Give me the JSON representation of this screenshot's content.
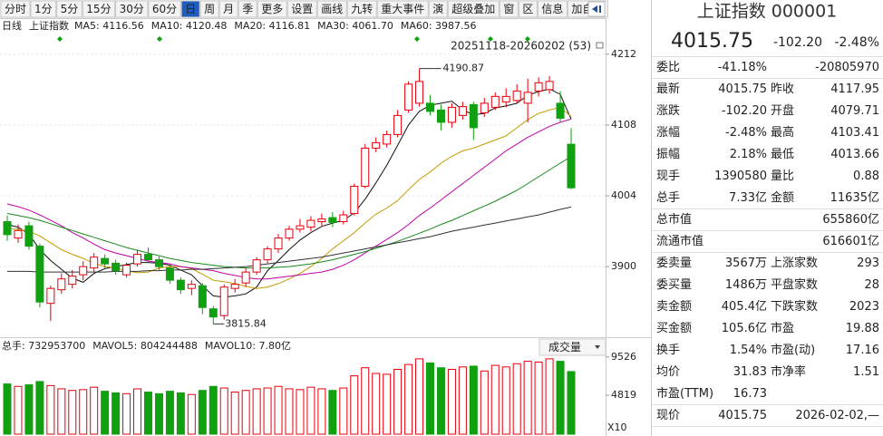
{
  "toolbar": {
    "items": [
      "分时",
      "1分",
      "5分",
      "15分",
      "30分",
      "60分",
      "日",
      "周",
      "月",
      "季",
      "更多",
      "设置",
      "画线",
      "九转",
      "重大事件",
      "演",
      "超级叠加",
      "窗",
      "区",
      "信息",
      "加自选"
    ],
    "active": 6
  },
  "chart_data": {
    "type": "candlestick",
    "period": "日线",
    "name": "上证指数",
    "range_label": "20251118-20260202 (53)",
    "up_color": "#e8000b",
    "down_color": "#10a010",
    "grid": true,
    "ylim": [
      3799,
      4245
    ],
    "yticks": [
      3900,
      4004,
      4108,
      4212
    ],
    "ytick_color": "#b00000",
    "open": [
      3966,
      3942,
      3960,
      3930,
      3846,
      3866,
      3874,
      3888,
      3898,
      3912,
      3905,
      3888,
      3904,
      3918,
      3910,
      3898,
      3880,
      3868,
      3872,
      3838,
      3828,
      3868,
      3876,
      3892,
      3910,
      3926,
      3942,
      3955,
      3958,
      3966,
      3972,
      3966,
      3978,
      4018,
      4074,
      4080,
      4094,
      4130,
      4140,
      4140,
      4130,
      4112,
      4122,
      4138,
      4126,
      4134,
      4142,
      4144,
      4140,
      4158,
      4160,
      4140,
      4079.71
    ],
    "high": [
      3975,
      3962,
      3966,
      3934,
      3872,
      3890,
      3895,
      3908,
      3920,
      3918,
      3910,
      3906,
      3925,
      3928,
      3915,
      3902,
      3884,
      3880,
      3876,
      3842,
      3874,
      3882,
      3898,
      3914,
      3930,
      3948,
      3960,
      3970,
      3974,
      3978,
      3980,
      3982,
      4022,
      4080,
      4090,
      4100,
      4130,
      4172,
      4190.87,
      4152,
      4138,
      4140,
      4142,
      4142,
      4148,
      4156,
      4162,
      4168,
      4176,
      4178,
      4180,
      4158,
      4103.41
    ],
    "low": [
      3938,
      3935,
      3925,
      3840,
      3820,
      3860,
      3868,
      3880,
      3892,
      3898,
      3888,
      3884,
      3900,
      3905,
      3895,
      3875,
      3860,
      3858,
      3830,
      3815.84,
      3822,
      3862,
      3870,
      3888,
      3905,
      3920,
      3938,
      3950,
      3952,
      3960,
      3958,
      3962,
      3975,
      4015,
      4068,
      4075,
      4090,
      4126,
      4135,
      4122,
      4100,
      4104,
      4116,
      4086,
      4120,
      4130,
      4134,
      4140,
      4112,
      4150,
      4154,
      4112,
      4013.66
    ],
    "close": [
      3947,
      3953,
      3930,
      3848,
      3868,
      3882,
      3886,
      3900,
      3914,
      3904,
      3894,
      3902,
      3918,
      3910,
      3900,
      3880,
      3866,
      3874,
      3840,
      3826,
      3870,
      3874,
      3892,
      3910,
      3926,
      3942,
      3955,
      3960,
      3968,
      3970,
      3965,
      3976,
      4018,
      4074,
      4082,
      4094,
      4122,
      4168,
      4172,
      4128,
      4112,
      4134,
      4135,
      4104,
      4140,
      4150,
      4150,
      4158,
      4156,
      4170,
      4172,
      4117.95,
      4015.75
    ],
    "ma": [
      {
        "label": "MA5: 4116.56",
        "color": "#111111",
        "values": [
          3962,
          3958,
          3948,
          3925,
          3909,
          3896,
          3883,
          3877,
          3890,
          3897,
          3900,
          3903,
          3906,
          3906,
          3905,
          3902,
          3895,
          3888,
          3872,
          3857,
          3855,
          3857,
          3860,
          3870,
          3894,
          3909,
          3925,
          3939,
          3950,
          3959,
          3964,
          3968,
          3979,
          3999,
          4023,
          4049,
          4078,
          4108,
          4128,
          4137,
          4140,
          4143,
          4130,
          4123,
          4125,
          4133,
          4136,
          4140,
          4152,
          4157,
          4161,
          4153,
          4116.56
        ]
      },
      {
        "label": "MA10: 4120.48",
        "color": "#c49a00",
        "values": [
          3955,
          3955,
          3952,
          3945,
          3935,
          3925,
          3918,
          3912,
          3905,
          3900,
          3898,
          3894,
          3891,
          3892,
          3898,
          3900,
          3900,
          3897,
          3889,
          3880,
          3878,
          3875,
          3871,
          3868,
          3870,
          3875,
          3882,
          3890,
          3900,
          3912,
          3926,
          3938,
          3950,
          3964,
          3977,
          3986,
          3997,
          4013,
          4028,
          4039,
          4052,
          4062,
          4070,
          4074,
          4080,
          4086,
          4092,
          4104,
          4116,
          4125,
          4130,
          4134,
          4120.48
        ]
      },
      {
        "label": "MA20: 4116.81",
        "color": "#c000a8",
        "values": [
          3992,
          3988,
          3983,
          3976,
          3968,
          3960,
          3950,
          3942,
          3933,
          3925,
          3920,
          3916,
          3912,
          3908,
          3906,
          3904,
          3900,
          3898,
          3896,
          3894,
          3890,
          3887,
          3884,
          3882,
          3882,
          3884,
          3886,
          3888,
          3890,
          3892,
          3896,
          3902,
          3910,
          3920,
          3930,
          3940,
          3950,
          3962,
          3975,
          3986,
          3998,
          4010,
          4022,
          4034,
          4046,
          4058,
          4070,
          4080,
          4090,
          4098,
          4106,
          4112,
          4116.81
        ]
      },
      {
        "label": "MA30: 4061.70",
        "color": "#1a8a1a",
        "values": [
          3978,
          3975,
          3972,
          3968,
          3963,
          3958,
          3953,
          3948,
          3943,
          3938,
          3933,
          3928,
          3924,
          3920,
          3916,
          3912,
          3909,
          3906,
          3904,
          3902,
          3900,
          3899,
          3898,
          3898,
          3898,
          3899,
          3900,
          3902,
          3904,
          3907,
          3910,
          3914,
          3918,
          3922,
          3927,
          3932,
          3937,
          3943,
          3949,
          3955,
          3962,
          3968,
          3975,
          3982,
          3989,
          3996,
          4004,
          4012,
          4022,
          4032,
          4042,
          4052,
          4061.7
        ]
      },
      {
        "label": "MA60: 3987.56",
        "color": "#333333",
        "values": [
          3893,
          3893,
          3893,
          3892,
          3892,
          3892,
          3892,
          3892,
          3892,
          3892,
          3893,
          3893,
          3893,
          3894,
          3894,
          3895,
          3895,
          3896,
          3896,
          3897,
          3898,
          3899,
          3900,
          3902,
          3904,
          3906,
          3908,
          3910,
          3912,
          3914,
          3917,
          3920,
          3923,
          3926,
          3929,
          3932,
          3935,
          3938,
          3941,
          3944,
          3948,
          3952,
          3955,
          3958,
          3961,
          3964,
          3967,
          3970,
          3973,
          3976,
          3980,
          3984,
          3987.56
        ]
      }
    ],
    "volume": {
      "selector": "成交量",
      "unit": "X10",
      "ylim": [
        0,
        11300
      ],
      "yticks": [
        4819,
        9526
      ],
      "legend": [
        {
          "label": "总手: 732953700",
          "color": "#0a7a0a"
        },
        {
          "label": "MAVOL5: 804244488",
          "color": "#b8860b"
        },
        {
          "label": "MAVOL10: 7.80亿",
          "color": "#111111"
        }
      ],
      "values": [
        6200,
        5900,
        6100,
        6500,
        6000,
        5600,
        5400,
        5500,
        5800,
        5300,
        5100,
        5000,
        5600,
        5200,
        5000,
        5300,
        5100,
        4900,
        5400,
        5900,
        5700,
        5200,
        5400,
        5600,
        5700,
        5900,
        5600,
        5500,
        5800,
        5600,
        5400,
        5700,
        7200,
        8200,
        7500,
        7400,
        8000,
        8600,
        9300,
        8800,
        8200,
        8000,
        8300,
        8400,
        7800,
        8500,
        8300,
        8700,
        9000,
        8900,
        9300,
        9000,
        7730
      ]
    }
  },
  "quote": {
    "title": "上证指数 000001",
    "price": "4015.75",
    "change": "-102.20",
    "pct": "-2.48%",
    "color": "#009900",
    "sections": [
      [
        [
          {
            "label": "委比",
            "value": "-41.18%",
            "color": "#009900"
          },
          {
            "value": "-20805970",
            "color": "#009900"
          }
        ]
      ],
      [
        [
          {
            "label": "最新",
            "value": "4015.75",
            "color": "#009900"
          },
          {
            "label": "昨收",
            "value": "4117.95"
          }
        ],
        [
          {
            "label": "涨跌",
            "value": "-102.20",
            "color": "#009900"
          },
          {
            "label": "开盘",
            "value": "4079.71",
            "color": "#009900"
          }
        ],
        [
          {
            "label": "涨幅",
            "value": "-2.48%",
            "color": "#009900"
          },
          {
            "label": "最高",
            "value": "4103.41",
            "color": "#009900"
          }
        ],
        [
          {
            "label": "振幅",
            "value": "2.18%"
          },
          {
            "label": "最低",
            "value": "4013.66",
            "color": "#009900"
          }
        ],
        [
          {
            "label": "现手",
            "value": "1390580"
          },
          {
            "label": "量比",
            "value": "0.88",
            "color": "#009900"
          }
        ],
        [
          {
            "label": "总手",
            "value": "7.33亿"
          },
          {
            "label": "金额",
            "value": "11635亿"
          }
        ]
      ],
      [
        [
          {
            "label": "总市值"
          },
          {
            "value": "655860亿"
          }
        ]
      ],
      [
        [
          {
            "label": "流通市值"
          },
          {
            "value": "616601亿"
          }
        ]
      ],
      [
        [
          {
            "label": "委卖量",
            "value": "3567万",
            "color": "#009900"
          },
          {
            "label": "上涨家数",
            "value": "293",
            "color": "#e00000"
          }
        ],
        [
          {
            "label": "委买量",
            "value": "1486万",
            "color": "#e00000"
          },
          {
            "label": "平盘家数",
            "value": "28"
          }
        ],
        [
          {
            "label": "卖金额",
            "value": "405.4亿"
          },
          {
            "label": "下跌家数",
            "value": "2023",
            "color": "#009900"
          }
        ],
        [
          {
            "label": "买金额",
            "value": "105.6亿"
          },
          {
            "label": "市盈",
            "value": "19.88"
          }
        ],
        [
          {
            "label": "换手",
            "value": "1.54%"
          },
          {
            "label": "市盈(动)",
            "value": "17.16"
          }
        ],
        [
          {
            "label": "均价",
            "value": "31.83",
            "color": "#009900"
          },
          {
            "label": "市净率",
            "value": "1.51"
          }
        ],
        [
          {
            "label": "市盈(TTM)",
            "value": "16.73"
          }
        ]
      ],
      [
        [
          {
            "label": "现价",
            "value": "4015.75",
            "color": "#009900"
          },
          {
            "value": "2026-02-02,—"
          }
        ]
      ]
    ]
  }
}
